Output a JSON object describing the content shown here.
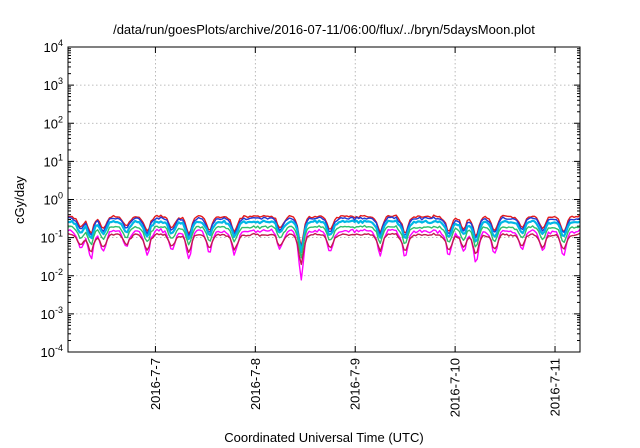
{
  "chart_data": {
    "type": "line",
    "title": "/data/run/goesPlots/archive/2016-07-11/06:00/flux/../bryn/5daysMoon.plot",
    "xlabel": "Coordinated Universal Time (UTC)",
    "ylabel": "cGy/day",
    "yscale": "log",
    "ylim": [
      0.0001,
      10000
    ],
    "xlim": [
      "2016-07-06 03:00",
      "2016-07-11 06:00"
    ],
    "grid": true,
    "legend": "none",
    "y_ticks": [
      {
        "value": 0.0001,
        "exp": "-4"
      },
      {
        "value": 0.001,
        "exp": "-3"
      },
      {
        "value": 0.01,
        "exp": "-2"
      },
      {
        "value": 0.1,
        "exp": "-1"
      },
      {
        "value": 1,
        "exp": "0"
      },
      {
        "value": 10,
        "exp": "1"
      },
      {
        "value": 100,
        "exp": "2"
      },
      {
        "value": 1000,
        "exp": "3"
      },
      {
        "value": 10000,
        "exp": "4"
      }
    ],
    "y_tick_base": "10",
    "x_ticks": [
      {
        "date": "2016-07-07",
        "label": "2016-7-7"
      },
      {
        "date": "2016-07-08",
        "label": "2016-7-8"
      },
      {
        "date": "2016-07-09",
        "label": "2016-7-9"
      },
      {
        "date": "2016-07-10",
        "label": "2016-7-10"
      },
      {
        "date": "2016-07-11",
        "label": "2016-7-11"
      }
    ],
    "series": [
      {
        "color": "#e31a1c",
        "level": 0.36
      },
      {
        "color": "#1f3bd6",
        "level": 0.32
      },
      {
        "color": "#00b7e6",
        "level": 0.26
      },
      {
        "color": "#2ec06a",
        "level": 0.19
      },
      {
        "color": "#ff00ff",
        "level": 0.15
      },
      {
        "color": "#c21b4f",
        "level": 0.12
      }
    ],
    "dips": [
      {
        "date": "2016-07-06 06:00",
        "depth": 0.5
      },
      {
        "date": "2016-07-06 08:30",
        "depth": 0.35
      },
      {
        "date": "2016-07-06 11:30",
        "depth": 0.45
      },
      {
        "date": "2016-07-06 17:00",
        "depth": 0.55
      },
      {
        "date": "2016-07-06 22:00",
        "depth": 0.4
      },
      {
        "date": "2016-07-07 04:00",
        "depth": 0.5
      },
      {
        "date": "2016-07-07 08:00",
        "depth": 0.35
      },
      {
        "date": "2016-07-07 13:00",
        "depth": 0.45
      },
      {
        "date": "2016-07-07 19:00",
        "depth": 0.4
      },
      {
        "date": "2016-07-08 06:00",
        "depth": 0.5
      },
      {
        "date": "2016-07-08 11:00",
        "depth": 0.15
      },
      {
        "date": "2016-07-08 18:00",
        "depth": 0.45
      },
      {
        "date": "2016-07-09 06:00",
        "depth": 0.4
      },
      {
        "date": "2016-07-09 12:00",
        "depth": 0.35
      },
      {
        "date": "2016-07-09 22:30",
        "depth": 0.4
      },
      {
        "date": "2016-07-10 02:00",
        "depth": 0.45
      },
      {
        "date": "2016-07-10 05:00",
        "depth": 0.3
      },
      {
        "date": "2016-07-10 09:30",
        "depth": 0.4
      },
      {
        "date": "2016-07-10 16:00",
        "depth": 0.5
      },
      {
        "date": "2016-07-10 21:00",
        "depth": 0.45
      },
      {
        "date": "2016-07-11 02:00",
        "depth": 0.4
      }
    ]
  }
}
